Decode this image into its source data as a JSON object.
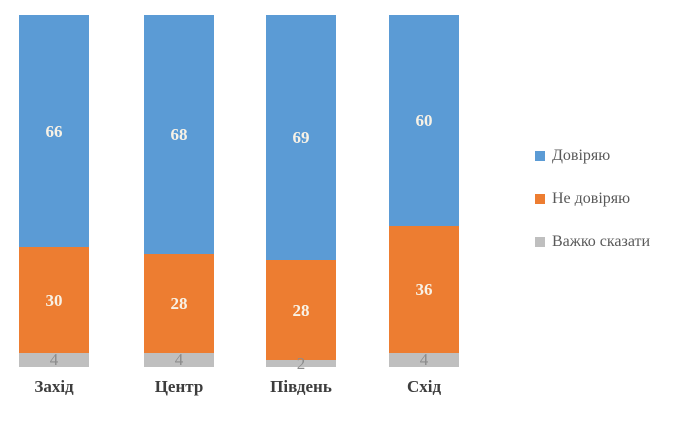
{
  "chart_data": {
    "type": "bar",
    "subtype": "stacked-100-percent",
    "orientation": "vertical",
    "title": "",
    "xlabel": "",
    "ylabel": "",
    "axis_visible": false,
    "grid": false,
    "legend_position": "right",
    "ylim": [
      0,
      100
    ],
    "categories": [
      "Захід",
      "Центр",
      "Південь",
      "Схід"
    ],
    "series": [
      {
        "name": "Довіряю",
        "color": "#5b9bd5",
        "values": [
          66,
          68,
          69,
          60
        ],
        "value_label": {
          "color": "#f8f2e6",
          "bold": true
        }
      },
      {
        "name": "Не довіряю",
        "color": "#ed7d31",
        "values": [
          30,
          28,
          28,
          36
        ],
        "value_label": {
          "color": "#f8f2e6",
          "bold": true
        }
      },
      {
        "name": "Важко сказати",
        "color": "#bfbfbf",
        "values": [
          4,
          4,
          2,
          4
        ],
        "value_label": {
          "color": "#8c8c8c",
          "bold": false
        }
      }
    ]
  },
  "legend": {
    "items": [
      "Довіряю",
      "Не довіряю",
      "Важко сказати"
    ]
  },
  "text_colors": {
    "category_label": "#3d3d3d",
    "legend_label": "#595959"
  }
}
